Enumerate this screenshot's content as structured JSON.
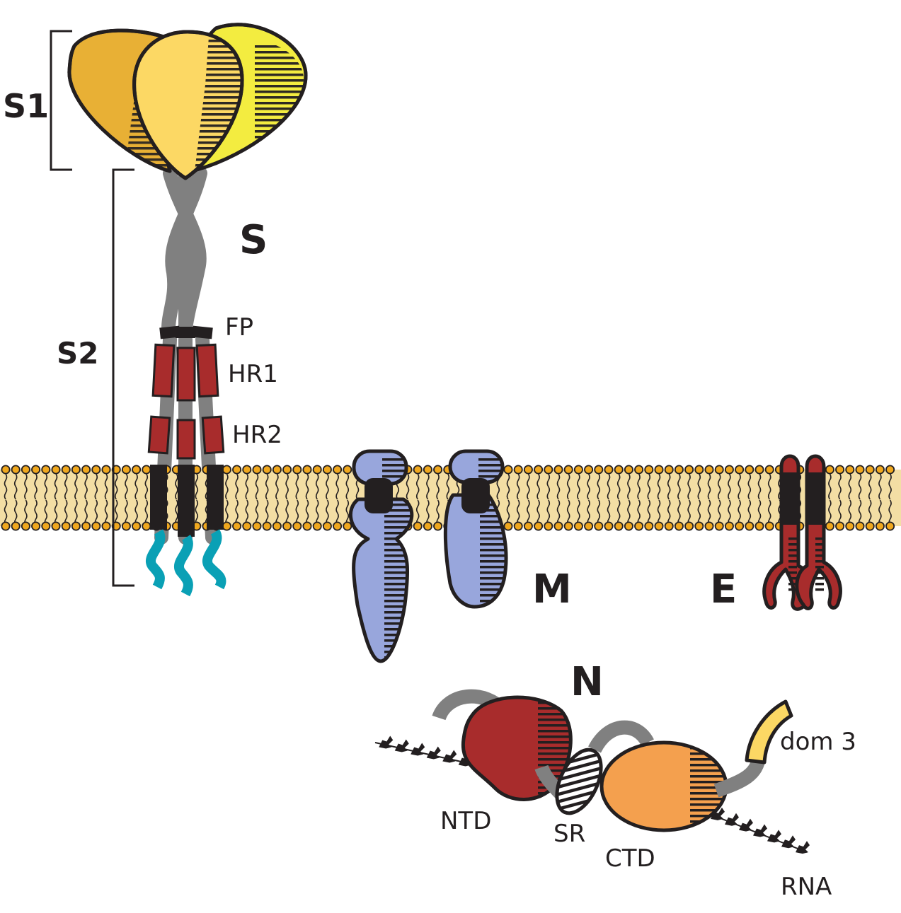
{
  "labels": {
    "s1": "S1",
    "s2": "S2",
    "s": "S",
    "fp": "FP",
    "hr1": "HR1",
    "hr2": "HR2",
    "m": "M",
    "e": "E",
    "n": "N",
    "dom3": "dom 3",
    "ntd": "NTD",
    "sr": "SR",
    "ctd": "CTD",
    "rna": "RNA"
  },
  "colors": {
    "outline": "#231f20",
    "membrane_fill": "#f3dea4",
    "lipid_head": "#f0a81e",
    "s1_left": "#e8b035",
    "s1_center": "#fcd864",
    "s1_right": "#f3ec40",
    "stalk": "#808080",
    "hr_segment": "#a82c2c",
    "tm_segment": "#231f20",
    "cytoplasmic_tail": "#0aa0b5",
    "m_protein": "#98a6dc",
    "e_protein": "#a82c2c",
    "n_ntd": "#a82c2c",
    "n_ctd": "#f4a04e",
    "dom3": "#fcd864"
  }
}
